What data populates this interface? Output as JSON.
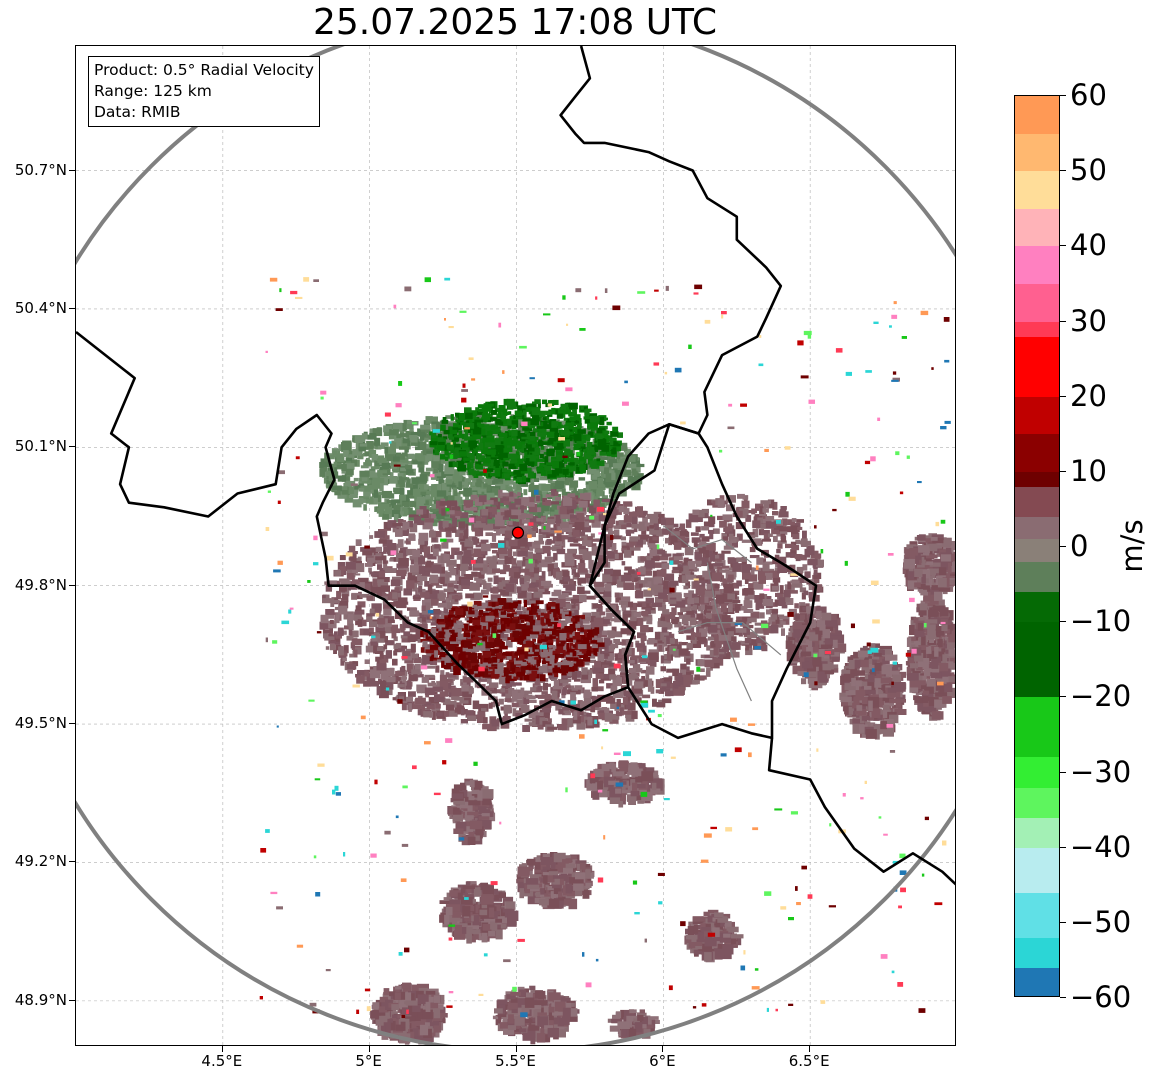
{
  "title": "25.07.2025 17:08 UTC",
  "info": {
    "product": "Product: 0.5° Radial Velocity",
    "range": "Range: 125 km",
    "source": "Data: RMIB"
  },
  "axes": {
    "lat_labels": [
      "50.7°N",
      "50.4°N",
      "50.1°N",
      "49.8°N",
      "49.5°N",
      "49.2°N",
      "48.9°N"
    ],
    "lat_values": [
      50.7,
      50.4,
      50.1,
      49.8,
      49.5,
      49.2,
      48.9
    ],
    "lon_labels": [
      "4.5°E",
      "5°E",
      "5.5°E",
      "6°E",
      "6.5°E"
    ],
    "lon_values": [
      4.5,
      5.0,
      5.5,
      6.0,
      6.5
    ],
    "lon_range": [
      4.0,
      7.0
    ],
    "lat_range": [
      48.8,
      50.97
    ]
  },
  "radar": {
    "lon": 5.505,
    "lat": 49.915,
    "range_km": 125
  },
  "colorbar": {
    "unit": "m/s",
    "ticks": [
      "60",
      "50",
      "40",
      "30",
      "20",
      "10",
      "0",
      "−10",
      "−20",
      "−30",
      "−40",
      "−50",
      "−60"
    ],
    "tick_values": [
      60,
      50,
      40,
      30,
      20,
      10,
      0,
      -10,
      -20,
      -30,
      -40,
      -50,
      -60
    ],
    "min": -60,
    "max": 60,
    "colors": {
      "c_m60": "#1f77b4",
      "c_m50": "#2bd6d6",
      "c_m40": "#b8ecef",
      "c_m30": "#5ef55e",
      "c_m20": "#18c818",
      "c_m10": "#006400",
      "c_0": "#5e7f5a",
      "c_5": "#8a6c72",
      "c_10": "#6e0000",
      "c_20": "#c00000",
      "c_30": "#ff3a55",
      "c_40": "#ff80c0",
      "c_50": "#ffdd99",
      "c_60": "#ff9955"
    }
  },
  "colors": {
    "border": "#000000",
    "range_ring": "#808080",
    "grid": "#b0b0b0",
    "radar_marker": "#ff0000"
  }
}
